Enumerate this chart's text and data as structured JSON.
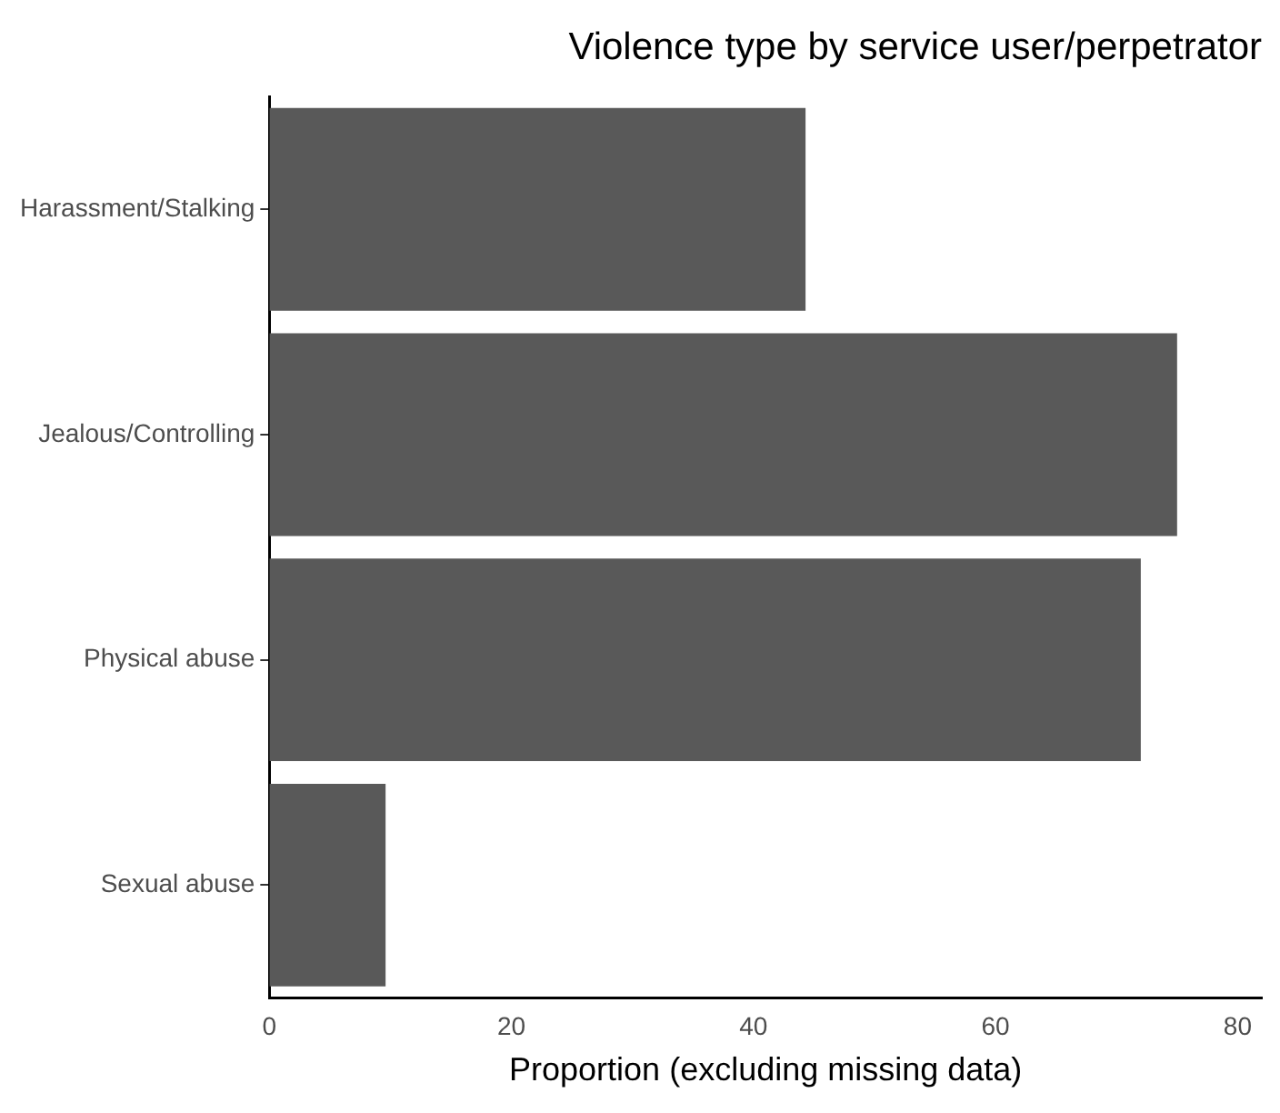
{
  "chart_data": {
    "type": "bar",
    "orientation": "horizontal",
    "title": "Violence type by service user/perpetrator",
    "xlabel": "Proportion (excluding missing data)",
    "categories": [
      "Harassment/Stalking",
      "Jealous/Controlling",
      "Physical abuse",
      "Sexual abuse"
    ],
    "values": [
      44.3,
      75.0,
      72.0,
      9.6
    ],
    "color": "#595959",
    "xlim": [
      0,
      82
    ],
    "xticks": [
      0,
      20,
      40,
      60,
      80
    ],
    "grid": false,
    "legend": false
  }
}
